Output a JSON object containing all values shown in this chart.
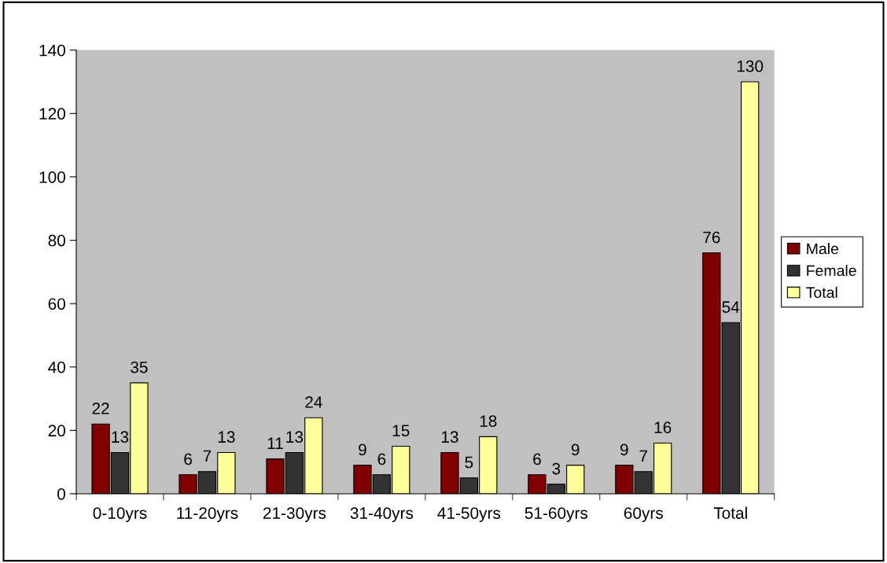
{
  "chart_data": {
    "type": "bar",
    "categories": [
      "0-10yrs",
      "11-20yrs",
      "21-30yrs",
      "31-40yrs",
      "41-50yrs",
      "51-60yrs",
      "60yrs",
      "Total"
    ],
    "series": [
      {
        "name": "Male",
        "color": "#800000",
        "values": [
          22,
          6,
          11,
          9,
          13,
          6,
          9,
          76
        ]
      },
      {
        "name": "Female",
        "color": "#333333",
        "values": [
          13,
          7,
          13,
          6,
          5,
          3,
          7,
          54
        ]
      },
      {
        "name": "Total",
        "color": "#ffff99",
        "values": [
          35,
          13,
          24,
          15,
          18,
          9,
          16,
          130
        ]
      }
    ],
    "ylim": [
      0,
      140
    ],
    "yticks": [
      0,
      20,
      40,
      60,
      80,
      100,
      120,
      140
    ],
    "data_labels": true,
    "grid": false,
    "legend": "right"
  }
}
